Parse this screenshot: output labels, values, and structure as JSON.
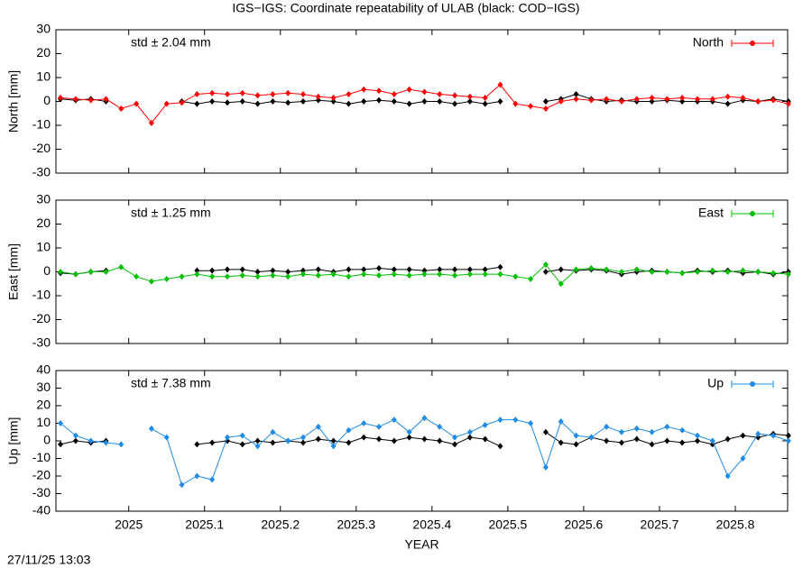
{
  "title": "IGS−IGS: Coordinate repeatability of ULAB (black: COD−IGS)",
  "timestamp": "27/11/25 13:03",
  "chart_data": [
    {
      "type": "line",
      "ylabel": "North [mm]",
      "annotation": "std ± 2.04 mm",
      "legend": "top-right",
      "show_xticklabels": false,
      "x": [
        2024.91,
        2024.93,
        2024.95,
        2024.97,
        2024.99,
        2025.01,
        2025.03,
        2025.05,
        2025.07,
        2025.09,
        2025.11,
        2025.13,
        2025.15,
        2025.17,
        2025.19,
        2025.21,
        2025.23,
        2025.25,
        2025.27,
        2025.29,
        2025.31,
        2025.33,
        2025.35,
        2025.37,
        2025.39,
        2025.41,
        2025.43,
        2025.45,
        2025.47,
        2025.49,
        2025.51,
        2025.53,
        2025.55,
        2025.57,
        2025.59,
        2025.61,
        2025.63,
        2025.65,
        2025.67,
        2025.69,
        2025.71,
        2025.73,
        2025.75,
        2025.77,
        2025.79,
        2025.81,
        2025.83,
        2025.85,
        2025.87
      ],
      "xlim": [
        2024.904,
        2025.869
      ],
      "xticks": [
        2025,
        2025.1,
        2025.2,
        2025.3,
        2025.4,
        2025.5,
        2025.6,
        2025.7,
        2025.8
      ],
      "ylim": [
        -30,
        30
      ],
      "yticks": [
        -30,
        -20,
        -10,
        0,
        10,
        20,
        30
      ],
      "series": [
        {
          "color": "#000000",
          "values": [
            1,
            0.5,
            1,
            0,
            null,
            null,
            null,
            null,
            0,
            -1,
            0,
            -0.5,
            0,
            -1,
            0,
            -0.5,
            0,
            0.5,
            0,
            -1,
            0,
            0.5,
            0,
            -1,
            0,
            0,
            -1,
            0,
            -1,
            0,
            null,
            null,
            0,
            1,
            3,
            1,
            0,
            0.5,
            0,
            0,
            0.5,
            0,
            0,
            0,
            -1,
            0.5,
            0,
            1,
            0
          ]
        },
        {
          "name": "North",
          "color": "#ff0000",
          "values": [
            1.5,
            1,
            0.5,
            1,
            -3,
            -1,
            -9,
            -1,
            -0.5,
            3,
            3.5,
            3,
            3.5,
            2.5,
            3,
            3.5,
            3,
            2,
            1.5,
            3,
            5,
            4.5,
            3,
            5,
            4,
            3,
            2.5,
            2,
            1.5,
            7,
            -1,
            -2,
            -3,
            0,
            1,
            0.5,
            1,
            0,
            1,
            1.5,
            1,
            1.5,
            1,
            1,
            2,
            1.5,
            0,
            0.5,
            -1
          ]
        }
      ]
    },
    {
      "type": "line",
      "ylabel": "East [mm]",
      "annotation": "std ± 1.25 mm",
      "legend": "top-right",
      "show_xticklabels": false,
      "x": [
        2024.91,
        2024.93,
        2024.95,
        2024.97,
        2024.99,
        2025.01,
        2025.03,
        2025.05,
        2025.07,
        2025.09,
        2025.11,
        2025.13,
        2025.15,
        2025.17,
        2025.19,
        2025.21,
        2025.23,
        2025.25,
        2025.27,
        2025.29,
        2025.31,
        2025.33,
        2025.35,
        2025.37,
        2025.39,
        2025.41,
        2025.43,
        2025.45,
        2025.47,
        2025.49,
        2025.51,
        2025.53,
        2025.55,
        2025.57,
        2025.59,
        2025.61,
        2025.63,
        2025.65,
        2025.67,
        2025.69,
        2025.71,
        2025.73,
        2025.75,
        2025.77,
        2025.79,
        2025.81,
        2025.83,
        2025.85,
        2025.87
      ],
      "xlim": [
        2024.904,
        2025.869
      ],
      "xticks": [
        2025,
        2025.1,
        2025.2,
        2025.3,
        2025.4,
        2025.5,
        2025.6,
        2025.7,
        2025.8
      ],
      "ylim": [
        -30,
        30
      ],
      "yticks": [
        -30,
        -20,
        -10,
        0,
        10,
        20,
        30
      ],
      "series": [
        {
          "color": "#000000",
          "values": [
            -0.5,
            -1,
            0,
            0.5,
            null,
            null,
            null,
            null,
            null,
            0.5,
            0.5,
            1,
            1,
            0,
            0.5,
            0,
            0.5,
            1,
            0,
            1,
            1,
            1.5,
            1,
            1,
            0.5,
            1,
            1,
            1,
            1,
            2,
            null,
            null,
            0,
            1,
            0.5,
            1,
            0.5,
            -1,
            0,
            0.5,
            0,
            -0.5,
            0.5,
            0,
            0.5,
            -0.5,
            0,
            -1,
            0
          ]
        },
        {
          "name": "East",
          "color": "#00c000",
          "values": [
            0,
            -1,
            0,
            0,
            2,
            -2,
            -4,
            -3,
            -2,
            -1,
            -2,
            -2,
            -1.5,
            -2,
            -1.5,
            -2,
            -1,
            -1.5,
            -1,
            -2,
            -1,
            -1.5,
            -1,
            -1.5,
            -1,
            -1,
            -1.5,
            -1,
            -1,
            -1,
            -2,
            -3,
            3,
            -5,
            1,
            1.5,
            1,
            0,
            1,
            0,
            0,
            -0.5,
            0,
            0.5,
            0,
            0.5,
            0,
            -0.5,
            -1
          ]
        }
      ]
    },
    {
      "type": "line",
      "ylabel": "Up [mm]",
      "annotation": "std ± 7.38 mm",
      "legend": "top-right",
      "show_xticklabels": true,
      "xlabel": "YEAR",
      "x": [
        2024.91,
        2024.93,
        2024.95,
        2024.97,
        2024.99,
        2025.01,
        2025.03,
        2025.05,
        2025.07,
        2025.09,
        2025.11,
        2025.13,
        2025.15,
        2025.17,
        2025.19,
        2025.21,
        2025.23,
        2025.25,
        2025.27,
        2025.29,
        2025.31,
        2025.33,
        2025.35,
        2025.37,
        2025.39,
        2025.41,
        2025.43,
        2025.45,
        2025.47,
        2025.49,
        2025.51,
        2025.53,
        2025.55,
        2025.57,
        2025.59,
        2025.61,
        2025.63,
        2025.65,
        2025.67,
        2025.69,
        2025.71,
        2025.73,
        2025.75,
        2025.77,
        2025.79,
        2025.81,
        2025.83,
        2025.85,
        2025.87
      ],
      "xlim": [
        2024.904,
        2025.869
      ],
      "xticks": [
        2025,
        2025.1,
        2025.2,
        2025.3,
        2025.4,
        2025.5,
        2025.6,
        2025.7,
        2025.8
      ],
      "ylim": [
        -40,
        40
      ],
      "yticks": [
        -40,
        -30,
        -20,
        -10,
        0,
        10,
        20,
        30,
        40
      ],
      "series": [
        {
          "color": "#000000",
          "values": [
            -2,
            0,
            -1,
            0,
            null,
            null,
            null,
            null,
            null,
            -2,
            -1,
            0,
            -2,
            0,
            -1,
            0,
            -1,
            1,
            0,
            -1,
            2,
            1,
            0,
            2,
            1,
            0,
            -2,
            2,
            1,
            -3,
            null,
            null,
            5,
            -1,
            -2,
            2,
            0,
            -1,
            1,
            -2,
            0,
            -1,
            0,
            -2,
            1,
            3,
            2,
            4,
            3
          ]
        },
        {
          "name": "Up",
          "color": "#1e8ce6",
          "values": [
            10,
            3,
            0,
            -1,
            -2,
            null,
            7,
            2,
            -25,
            -20,
            -22,
            2,
            3,
            -3,
            5,
            0,
            2,
            8,
            -3,
            6,
            10,
            8,
            12,
            5,
            13,
            8,
            2,
            5,
            9,
            12,
            12,
            10,
            -15,
            11,
            3,
            2,
            8,
            5,
            7,
            5,
            8,
            6,
            3,
            0,
            -20,
            -10,
            4,
            3,
            0
          ]
        }
      ]
    }
  ]
}
